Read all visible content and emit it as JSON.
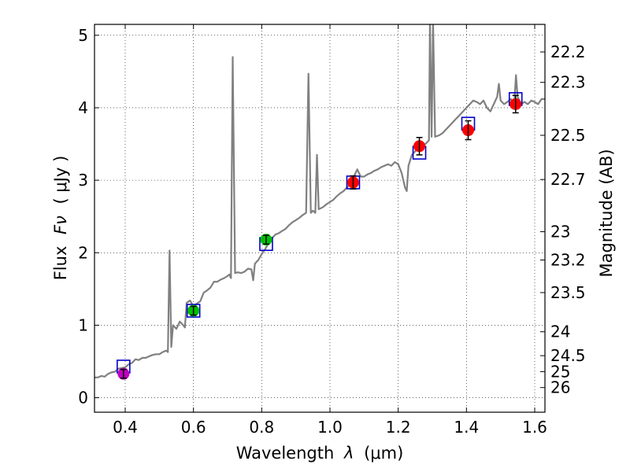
{
  "chart_data": {
    "type": "scatter",
    "xlabel": "Wavelength",
    "xlabel_symbol": "λ",
    "xlabel_unit": "(μm)",
    "ylabel": "Flux",
    "ylabel_symbol": "Fν",
    "ylabel_unit": "( μJy )",
    "y2label": "Magnitude (AB)",
    "xlim": [
      0.31,
      1.63
    ],
    "ylim": [
      -0.2,
      5.15
    ],
    "grid": true,
    "x_ticks": [
      0.4,
      0.6,
      0.8,
      1.0,
      1.2,
      1.4,
      1.6
    ],
    "x_tick_labels": [
      "0.4",
      "0.6",
      "0.8",
      "1.0",
      "1.2",
      "1.4",
      "1.6"
    ],
    "y_ticks": [
      0,
      1,
      2,
      3,
      4,
      5
    ],
    "y_tick_labels": [
      "0",
      "1",
      "2",
      "3",
      "4",
      "5"
    ],
    "mag_ticks": [
      {
        "label": "22.2",
        "flux": 4.77
      },
      {
        "label": "22.3",
        "flux": 4.35
      },
      {
        "label": "22.5",
        "flux": 3.62
      },
      {
        "label": "22.7",
        "flux": 3.01
      },
      {
        "label": "23",
        "flux": 2.29
      },
      {
        "label": "23.2",
        "flux": 1.9
      },
      {
        "label": "23.5",
        "flux": 1.45
      },
      {
        "label": "24",
        "flux": 0.91
      },
      {
        "label": "24.5",
        "flux": 0.58
      },
      {
        "label": "25",
        "flux": 0.36
      },
      {
        "label": "26",
        "flux": 0.14
      }
    ],
    "spectrum": {
      "name": "model-spectrum",
      "color": "#808080",
      "points": [
        [
          0.31,
          0.28
        ],
        [
          0.32,
          0.28
        ],
        [
          0.33,
          0.3
        ],
        [
          0.34,
          0.29
        ],
        [
          0.35,
          0.33
        ],
        [
          0.36,
          0.35
        ],
        [
          0.37,
          0.36
        ],
        [
          0.38,
          0.4
        ],
        [
          0.39,
          0.41
        ],
        [
          0.4,
          0.42
        ],
        [
          0.41,
          0.46
        ],
        [
          0.42,
          0.48
        ],
        [
          0.43,
          0.53
        ],
        [
          0.44,
          0.52
        ],
        [
          0.45,
          0.55
        ],
        [
          0.46,
          0.55
        ],
        [
          0.47,
          0.57
        ],
        [
          0.48,
          0.59
        ],
        [
          0.49,
          0.6
        ],
        [
          0.5,
          0.6
        ],
        [
          0.51,
          0.63
        ],
        [
          0.52,
          0.65
        ],
        [
          0.525,
          0.63
        ],
        [
          0.53,
          2.03
        ],
        [
          0.535,
          0.7
        ],
        [
          0.54,
          1.0
        ],
        [
          0.55,
          0.95
        ],
        [
          0.56,
          1.05
        ],
        [
          0.57,
          1.0
        ],
        [
          0.575,
          0.97
        ],
        [
          0.58,
          1.31
        ],
        [
          0.59,
          1.34
        ],
        [
          0.6,
          1.26
        ],
        [
          0.61,
          1.3
        ],
        [
          0.62,
          1.33
        ],
        [
          0.63,
          1.45
        ],
        [
          0.64,
          1.48
        ],
        [
          0.65,
          1.52
        ],
        [
          0.66,
          1.6
        ],
        [
          0.67,
          1.6
        ],
        [
          0.68,
          1.63
        ],
        [
          0.69,
          1.65
        ],
        [
          0.7,
          1.68
        ],
        [
          0.705,
          1.7
        ],
        [
          0.71,
          1.65
        ],
        [
          0.715,
          4.7
        ],
        [
          0.722,
          1.72
        ],
        [
          0.73,
          1.73
        ],
        [
          0.74,
          1.72
        ],
        [
          0.75,
          1.74
        ],
        [
          0.76,
          1.78
        ],
        [
          0.77,
          1.77
        ],
        [
          0.775,
          1.62
        ],
        [
          0.78,
          1.85
        ],
        [
          0.79,
          1.9
        ],
        [
          0.8,
          1.98
        ],
        [
          0.81,
          2.05
        ],
        [
          0.82,
          2.13
        ],
        [
          0.83,
          2.2
        ],
        [
          0.84,
          2.25
        ],
        [
          0.85,
          2.27
        ],
        [
          0.86,
          2.3
        ],
        [
          0.87,
          2.33
        ],
        [
          0.88,
          2.38
        ],
        [
          0.89,
          2.42
        ],
        [
          0.9,
          2.45
        ],
        [
          0.91,
          2.48
        ],
        [
          0.92,
          2.52
        ],
        [
          0.93,
          2.55
        ],
        [
          0.937,
          4.47
        ],
        [
          0.944,
          2.55
        ],
        [
          0.95,
          2.58
        ],
        [
          0.957,
          2.55
        ],
        [
          0.962,
          3.35
        ],
        [
          0.967,
          2.6
        ],
        [
          0.98,
          2.63
        ],
        [
          0.99,
          2.67
        ],
        [
          1.0,
          2.7
        ],
        [
          1.01,
          2.73
        ],
        [
          1.02,
          2.78
        ],
        [
          1.03,
          2.82
        ],
        [
          1.04,
          2.85
        ],
        [
          1.05,
          2.9
        ],
        [
          1.06,
          2.95
        ],
        [
          1.07,
          3.05
        ],
        [
          1.08,
          3.15
        ],
        [
          1.09,
          3.05
        ],
        [
          1.1,
          3.05
        ],
        [
          1.11,
          3.08
        ],
        [
          1.12,
          3.1
        ],
        [
          1.13,
          3.13
        ],
        [
          1.14,
          3.15
        ],
        [
          1.15,
          3.18
        ],
        [
          1.16,
          3.2
        ],
        [
          1.17,
          3.22
        ],
        [
          1.18,
          3.2
        ],
        [
          1.19,
          3.25
        ],
        [
          1.2,
          3.22
        ],
        [
          1.21,
          3.1
        ],
        [
          1.22,
          2.9
        ],
        [
          1.225,
          2.85
        ],
        [
          1.23,
          3.2
        ],
        [
          1.24,
          3.35
        ],
        [
          1.25,
          3.4
        ],
        [
          1.26,
          3.45
        ],
        [
          1.27,
          3.5
        ],
        [
          1.28,
          3.5
        ],
        [
          1.29,
          3.55
        ],
        [
          1.293,
          5.2
        ],
        [
          1.298,
          3.6
        ],
        [
          1.302,
          5.2
        ],
        [
          1.308,
          3.6
        ],
        [
          1.32,
          3.62
        ],
        [
          1.33,
          3.65
        ],
        [
          1.34,
          3.7
        ],
        [
          1.35,
          3.75
        ],
        [
          1.36,
          3.8
        ],
        [
          1.37,
          3.85
        ],
        [
          1.38,
          3.9
        ],
        [
          1.39,
          3.95
        ],
        [
          1.4,
          4.0
        ],
        [
          1.41,
          4.05
        ],
        [
          1.42,
          4.1
        ],
        [
          1.43,
          4.08
        ],
        [
          1.44,
          4.05
        ],
        [
          1.45,
          4.1
        ],
        [
          1.46,
          4.0
        ],
        [
          1.47,
          3.95
        ],
        [
          1.48,
          4.05
        ],
        [
          1.49,
          4.15
        ],
        [
          1.495,
          4.33
        ],
        [
          1.5,
          4.1
        ],
        [
          1.51,
          4.05
        ],
        [
          1.52,
          4.08
        ],
        [
          1.53,
          4.12
        ],
        [
          1.54,
          4.05
        ],
        [
          1.545,
          4.45
        ],
        [
          1.55,
          4.15
        ],
        [
          1.56,
          4.05
        ],
        [
          1.57,
          4.08
        ],
        [
          1.58,
          4.05
        ],
        [
          1.59,
          4.1
        ],
        [
          1.6,
          4.08
        ],
        [
          1.61,
          4.05
        ],
        [
          1.62,
          4.12
        ],
        [
          1.63,
          4.12
        ]
      ]
    },
    "model_boxes": {
      "name": "model-photometry",
      "color": "#0000cc",
      "points": [
        {
          "x": 0.395,
          "y": 0.43
        },
        {
          "x": 0.6,
          "y": 1.2
        },
        {
          "x": 0.813,
          "y": 2.12
        },
        {
          "x": 1.068,
          "y": 2.97
        },
        {
          "x": 1.262,
          "y": 3.38
        },
        {
          "x": 1.405,
          "y": 3.78
        },
        {
          "x": 1.544,
          "y": 4.12
        }
      ]
    },
    "observations": {
      "name": "observed-photometry",
      "points": [
        {
          "x": 0.395,
          "y": 0.33,
          "err": 0.06,
          "color": "#bf00bf"
        },
        {
          "x": 0.6,
          "y": 1.2,
          "err": 0.06,
          "color": "#00bf00"
        },
        {
          "x": 0.813,
          "y": 2.18,
          "err": 0.06,
          "color": "#00bf00"
        },
        {
          "x": 1.068,
          "y": 2.97,
          "err": 0.09,
          "color": "#ff0000"
        },
        {
          "x": 1.262,
          "y": 3.47,
          "err": 0.12,
          "color": "#ff0000"
        },
        {
          "x": 1.405,
          "y": 3.69,
          "err": 0.13,
          "color": "#ff0000"
        },
        {
          "x": 1.544,
          "y": 4.05,
          "err": 0.12,
          "color": "#ff0000"
        }
      ]
    }
  }
}
